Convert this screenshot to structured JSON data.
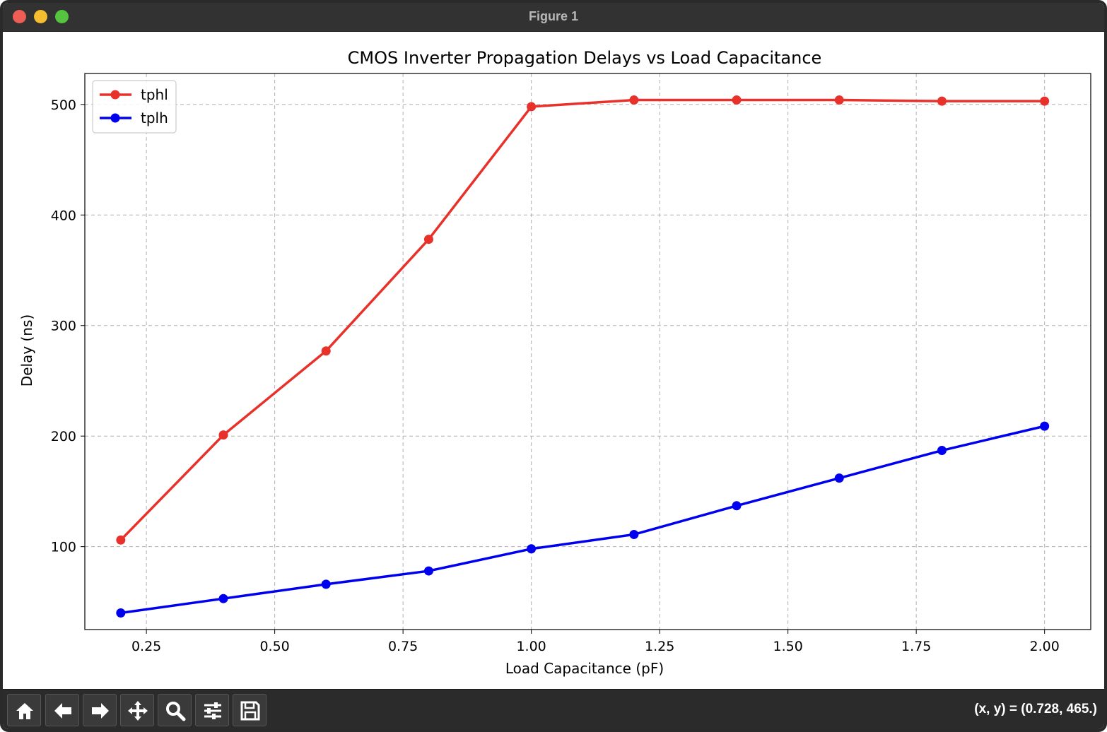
{
  "window": {
    "title": "Figure 1"
  },
  "toolbar": {
    "buttons": [
      {
        "name": "home",
        "icon": "home-icon"
      },
      {
        "name": "back",
        "icon": "arrow-left-icon"
      },
      {
        "name": "forward",
        "icon": "arrow-right-icon"
      },
      {
        "name": "pan",
        "icon": "move-icon"
      },
      {
        "name": "zoom",
        "icon": "magnifier-icon"
      },
      {
        "name": "configure",
        "icon": "sliders-icon"
      },
      {
        "name": "save",
        "icon": "floppy-icon"
      }
    ],
    "coords_text": "(x, y) = (0.728, 465.)"
  },
  "chart_data": {
    "type": "line",
    "title": "CMOS Inverter Propagation Delays vs Load Capacitance",
    "xlabel": "Load Capacitance (pF)",
    "ylabel": "Delay (ns)",
    "xlim": [
      0.13,
      2.09
    ],
    "ylim": [
      25,
      528
    ],
    "xticks": [
      0.25,
      0.5,
      0.75,
      1.0,
      1.25,
      1.5,
      1.75,
      2.0
    ],
    "xtick_labels": [
      "0.25",
      "0.50",
      "0.75",
      "1.00",
      "1.25",
      "1.50",
      "1.75",
      "2.00"
    ],
    "yticks": [
      100,
      200,
      300,
      400,
      500
    ],
    "ytick_labels": [
      "100",
      "200",
      "300",
      "400",
      "500"
    ],
    "grid": true,
    "legend_position": "top-left",
    "x": [
      0.2,
      0.4,
      0.6,
      0.8,
      1.0,
      1.2,
      1.4,
      1.6,
      1.8,
      2.0
    ],
    "series": [
      {
        "name": "tphl",
        "color": "#e8312a",
        "values": [
          106,
          201,
          277,
          378,
          498,
          504,
          504,
          504,
          503,
          503
        ]
      },
      {
        "name": "tplh",
        "color": "#0000f0",
        "values": [
          40,
          53,
          66,
          78,
          98,
          111,
          137,
          162,
          187,
          209
        ]
      }
    ]
  }
}
